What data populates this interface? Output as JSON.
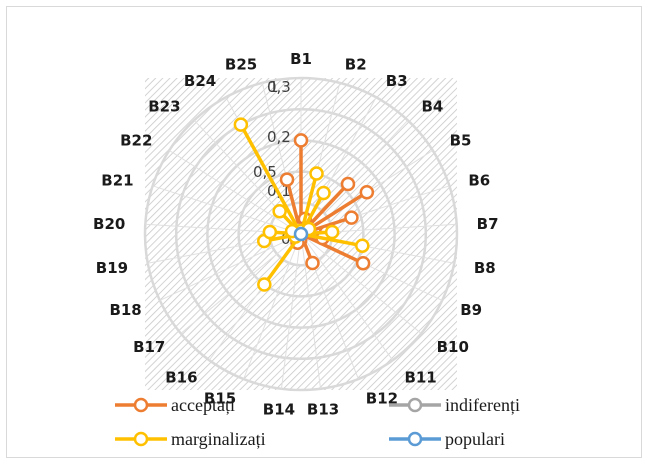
{
  "chart_data": {
    "type": "radar",
    "categories": [
      "B1",
      "B2",
      "B3",
      "B4",
      "B5",
      "B6",
      "B7",
      "B8",
      "B9",
      "B10",
      "B11",
      "B12",
      "B13",
      "B14",
      "B15",
      "B16",
      "B17",
      "B18",
      "B19",
      "B20",
      "B21",
      "B22",
      "B23",
      "B24",
      "B25"
    ],
    "radial_ticks": [
      "0",
      "0,1",
      "0,2",
      "0,3"
    ],
    "overlap_ticks": [
      "0,5",
      "1"
    ],
    "rmax": 0.5,
    "colors": {
      "acceptati": "#ed7d31",
      "indiferenti": "#a5a5a5",
      "marginalizati": "#ffc000",
      "populari": "#5b9bd5"
    },
    "series": [
      {
        "name": "acceptați",
        "key": "acceptati",
        "values": [
          0.3,
          0.05,
          0.02,
          0.22,
          0.25,
          0.17,
          0.08,
          0.07,
          0.22,
          0,
          0,
          0.1,
          0,
          0.02,
          0.03,
          0,
          0,
          0,
          0,
          0,
          0,
          0.02,
          0,
          0.02,
          0.18
        ]
      },
      {
        "name": "indiferenți",
        "key": "indiferenti",
        "values": [
          0,
          0,
          0,
          0,
          0,
          0,
          0,
          0,
          0,
          0,
          0,
          0,
          0,
          0,
          0,
          0,
          0,
          0,
          0,
          0,
          0,
          0,
          0,
          0,
          0
        ]
      },
      {
        "name": "marginalizați",
        "key": "marginalizati",
        "values": [
          0.01,
          0.2,
          0.15,
          0,
          0.03,
          0,
          0.1,
          0.2,
          0,
          0,
          0,
          0,
          0,
          0,
          0,
          0.2,
          0,
          0.02,
          0.12,
          0.1,
          0.03,
          0,
          0.1,
          0.4,
          0
        ]
      },
      {
        "name": "populari",
        "key": "populari",
        "values": [
          0,
          0,
          0,
          0,
          0,
          0,
          0,
          0,
          0,
          0,
          0,
          0,
          0,
          0,
          0,
          0,
          0,
          0,
          0,
          0,
          0,
          0,
          0,
          0,
          0
        ]
      }
    ],
    "legend_position": "bottom"
  }
}
